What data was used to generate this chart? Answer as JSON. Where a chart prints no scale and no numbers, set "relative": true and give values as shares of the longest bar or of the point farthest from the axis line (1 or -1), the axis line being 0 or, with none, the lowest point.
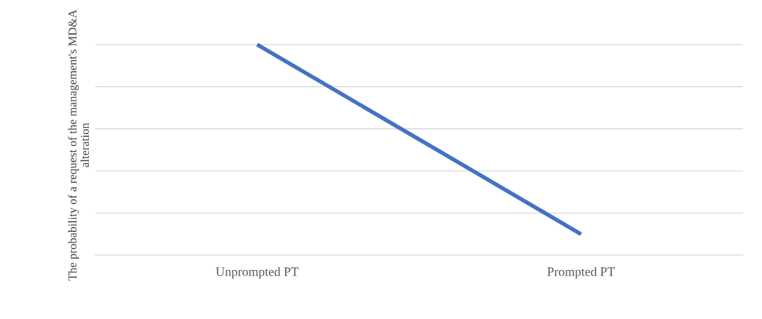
{
  "chart_data": {
    "type": "line",
    "ylabel": "The probability of a request of the management's MD&A alteration",
    "categories": [
      "Unprompted PT",
      "Prompted PT"
    ],
    "series": [
      {
        "color": "#4472c4",
        "values": [
          1,
          0.1
        ]
      }
    ],
    "relative": true,
    "grid": "y",
    "legend": false,
    "marker": "none",
    "line_style": "solid"
  }
}
